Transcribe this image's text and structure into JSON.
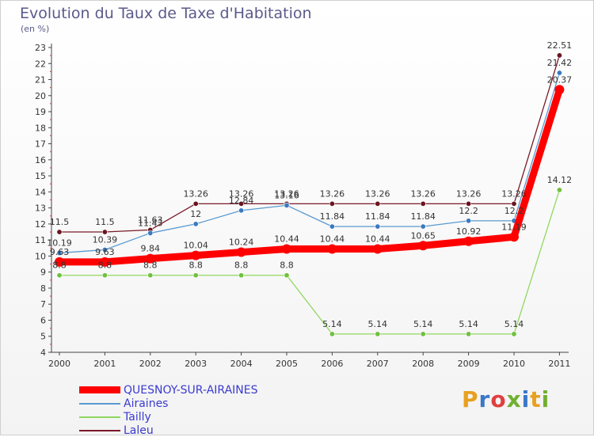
{
  "header": {
    "title": "Evolution du Taux de Taxe d'Habitation",
    "subtitle": "(en %)"
  },
  "logo": {
    "text": "Proxiti",
    "colors": [
      "#e8a020",
      "#3a78c8",
      "#e04040",
      "#70b030",
      "#3a78c8",
      "#e8a020",
      "#70b030"
    ]
  },
  "chart_data": {
    "type": "line",
    "x": [
      2000,
      2001,
      2002,
      2003,
      2004,
      2005,
      2006,
      2007,
      2008,
      2009,
      2010,
      2011
    ],
    "ylim": [
      4,
      23
    ],
    "yticks": [
      4,
      5,
      6,
      7,
      8,
      9,
      10,
      11,
      12,
      13,
      14,
      15,
      16,
      17,
      18,
      19,
      20,
      21,
      22,
      23
    ],
    "grid": false,
    "legend_position": "bottom-left",
    "series": [
      {
        "name": "Laleu",
        "color": "#7a1a2a",
        "marker": "#6a1420",
        "values": [
          11.5,
          11.5,
          11.63,
          13.26,
          13.26,
          13.26,
          13.26,
          13.26,
          13.26,
          13.26,
          13.26,
          22.51
        ],
        "labels": [
          "11.5",
          "11.5",
          "11.63",
          "13.26",
          "13.26",
          "13.26",
          "13.26",
          "13.26",
          "13.26",
          "13.26",
          "13.26",
          "22.51"
        ]
      },
      {
        "name": "Airaines",
        "color": "#5a9ad0",
        "marker": "#3a7ac0",
        "values": [
          10.19,
          10.39,
          11.43,
          12,
          12.84,
          13.16,
          11.84,
          11.84,
          11.84,
          12.2,
          12.2,
          21.42
        ],
        "labels": [
          "10.19",
          "10.39",
          "11.43",
          "12",
          "12.84",
          "13.16",
          "11.84",
          "11.84",
          "11.84",
          "12.2",
          "12.2",
          "21.42"
        ]
      },
      {
        "name": "Tailly",
        "color": "#90d860",
        "marker": "#70c040",
        "values": [
          8.8,
          8.8,
          8.8,
          8.8,
          8.8,
          8.8,
          5.14,
          5.14,
          5.14,
          5.14,
          5.14,
          14.12
        ],
        "labels": [
          "8.8",
          "8.8",
          "8.8",
          "8.8",
          "8.8",
          "8.8",
          "5.14",
          "5.14",
          "5.14",
          "5.14",
          "5.14",
          "14.12"
        ]
      },
      {
        "name": "QUESNOY-SUR-AIRAINES",
        "color": "#ff0000",
        "marker": "#ff0000",
        "values": [
          9.63,
          9.63,
          9.84,
          10.04,
          10.24,
          10.44,
          10.44,
          10.44,
          10.65,
          10.92,
          11.19,
          20.37
        ],
        "labels": [
          "9.63",
          "9.63",
          "9.84",
          "10.04",
          "10.24",
          "10.44",
          "10.44",
          "10.44",
          "10.65",
          "10.92",
          "11.19",
          "20.37"
        ]
      }
    ]
  },
  "legend": [
    {
      "label": "QUESNOY-SUR-AIRAINES",
      "color": "#ff0000"
    },
    {
      "label": "Airaines",
      "color": "#5a9ad0"
    },
    {
      "label": "Tailly",
      "color": "#90d860"
    },
    {
      "label": "Laleu",
      "color": "#7a1a2a"
    }
  ]
}
